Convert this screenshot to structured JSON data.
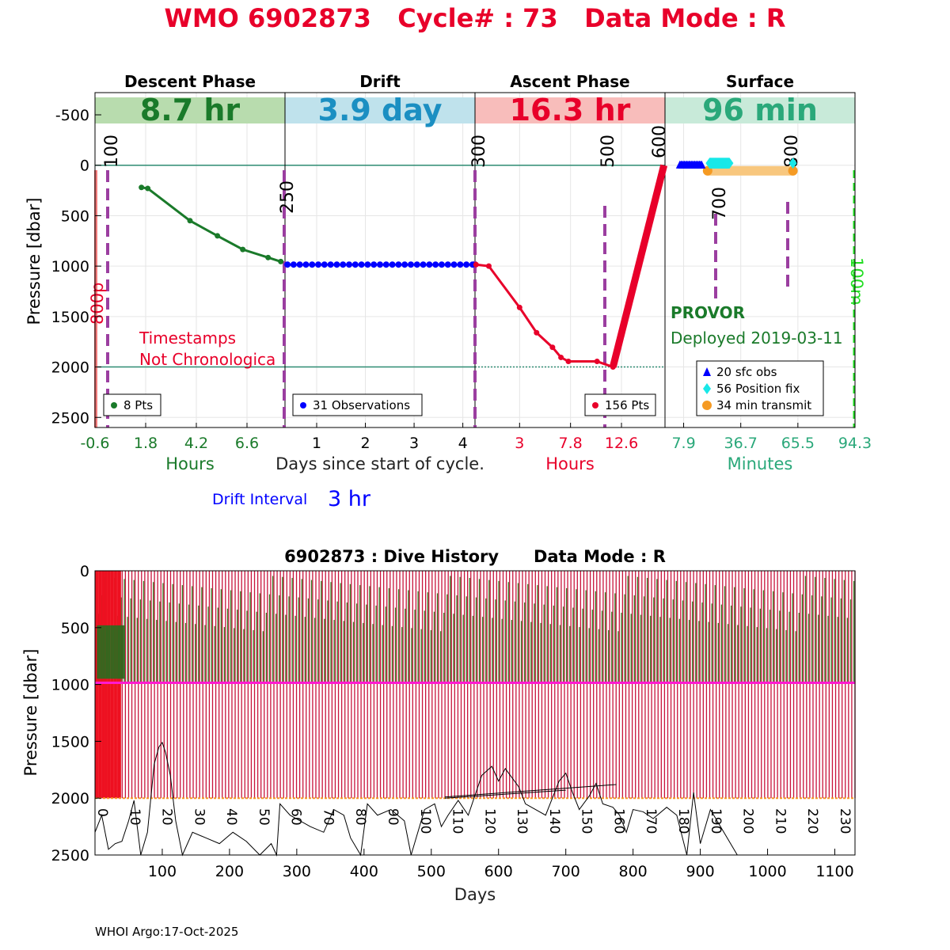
{
  "page_title": "WMO 6902873   Cycle# : 73   Data Mode : R",
  "footer": "WHOI Argo:17-Oct-2025",
  "colors": {
    "title_red": "#e8002a",
    "descent_green": "#1a7a2a",
    "drift_blue": "#0000ff",
    "ascent_red": "#e8002a",
    "surface_teal": "#2aa87a",
    "purple_dash": "#9b3ea0",
    "lime": "#22dd22",
    "orange": "#f59a23",
    "cyan": "#18e8e8"
  },
  "chart_data": [
    {
      "type": "line",
      "name": "cycle-profile",
      "ylabel": "Pressure [dbar]",
      "xlabel_center": "Days since start of cycle.",
      "ylim": [
        2600,
        -720
      ],
      "yticks": [
        -500,
        0,
        500,
        1000,
        1500,
        2000,
        2500
      ],
      "drift_interval_label": "Drift Interval",
      "drift_interval_value": "3 hr",
      "float_type": "PROVOR",
      "deployed": "Deployed 2019-03-11",
      "warning": [
        "Timestamps",
        "Not Chronologica"
      ],
      "marker_labels": {
        "left_red": "800p",
        "right_green": "100m",
        "cycle_marks": [
          "100",
          "250",
          "300",
          "500",
          "600",
          "700",
          "800"
        ]
      },
      "panels": [
        {
          "title": "Descent Phase",
          "duration": "8.7 hr",
          "unit": "Hours",
          "xlim": [
            -0.6,
            8.4
          ],
          "xticks": [
            -0.6,
            1.8,
            4.2,
            6.6
          ],
          "series": [
            {
              "name": "descent",
              "x": [
                1.6,
                1.9,
                3.9,
                5.2,
                6.4,
                7.6,
                8.2
              ],
              "y": [
                220,
                230,
                550,
                700,
                835,
                915,
                955
              ]
            }
          ],
          "legend": "8 Pts"
        },
        {
          "title": "Drift",
          "duration": "3.9 day",
          "unit": "Days",
          "xlim": [
            0.35,
            4.25
          ],
          "xticks": [
            1,
            2,
            3,
            4
          ],
          "series": [
            {
              "name": "drift",
              "x_start": 0.4,
              "x_end": 4.2,
              "count": 31,
              "y": 985
            }
          ],
          "legend": "31 Observations"
        },
        {
          "title": "Ascent Phase",
          "duration": "16.3 hr",
          "unit": "Hours",
          "xlim": [
            -1.2,
            16.7
          ],
          "xticks": [
            3,
            7.8,
            12.6
          ],
          "series": [
            {
              "name": "ascent",
              "x": [
                -1.1,
                0.1,
                3.0,
                4.6,
                6.1,
                6.9,
                7.6,
                10.3,
                11.8,
                16.6
              ],
              "y": [
                985,
                1000,
                1410,
                1660,
                1805,
                1905,
                1945,
                1945,
                2000,
                0
              ]
            }
          ],
          "legend": "156 Pts",
          "reference_level": 2000
        },
        {
          "title": "Surface",
          "duration": "96 min",
          "unit": "Minutes",
          "xlim": [
            -1.5,
            94.3
          ],
          "xticks": [
            7.9,
            36.7,
            65.5,
            94.3
          ],
          "sfc_obs": {
            "count": 20,
            "label": "20 sfc obs",
            "x_start": 6.0,
            "x_end": 17.0,
            "y": 0
          },
          "position_fix": {
            "count": 56,
            "label": "56 Position fix",
            "x_start": 21.0,
            "x_end": 31.0,
            "y": -20
          },
          "transmit": {
            "label": "34 min transmit",
            "x_start": 20.0,
            "x_end": 63.0,
            "y": 55
          }
        }
      ]
    },
    {
      "type": "line",
      "name": "dive-history",
      "title": "6902873 : Dive History      Data Mode : R",
      "xlabel": "Days",
      "ylabel": "Pressure [dbar]",
      "xlim": [
        0,
        1130
      ],
      "ylim": [
        2500,
        0
      ],
      "xticks": [
        100,
        200,
        300,
        400,
        500,
        600,
        700,
        800,
        900,
        1000,
        1100
      ],
      "yticks": [
        0,
        500,
        1000,
        1500,
        2000,
        2500
      ],
      "cycle_count": 236,
      "cycle_interval_days": 4.8,
      "park_pressure": 985,
      "profile_pressure": 2000,
      "cycle_labels": [
        0,
        10,
        20,
        30,
        40,
        50,
        60,
        70,
        80,
        90,
        100,
        110,
        120,
        130,
        140,
        150,
        160,
        170,
        180,
        190,
        200,
        210,
        220,
        230
      ],
      "bathymetry": {
        "x": [
          0,
          10,
          20,
          30,
          40,
          50,
          58,
          68,
          78,
          88,
          95,
          100,
          105,
          112,
          120,
          130,
          145,
          165,
          185,
          205,
          225,
          245,
          262,
          270,
          275,
          290,
          305,
          320,
          340,
          355,
          370,
          380,
          395,
          405,
          420,
          440,
          460,
          470,
          490,
          505,
          515,
          525,
          540,
          555,
          575,
          590,
          600,
          610,
          620,
          630,
          640,
          655,
          670,
          690,
          700,
          710,
          720,
          735,
          745,
          755,
          770,
          780,
          790,
          800,
          815,
          830,
          850,
          865,
          880,
          890,
          900,
          915,
          935,
          955
        ],
        "y": [
          2300,
          2150,
          2450,
          2400,
          2380,
          2200,
          2020,
          2500,
          2300,
          1700,
          1550,
          1510,
          1600,
          1800,
          2200,
          2500,
          2300,
          2350,
          2400,
          2300,
          2380,
          2500,
          2400,
          2500,
          2050,
          2150,
          2200,
          2250,
          2300,
          2100,
          2150,
          2350,
          2500,
          2050,
          2150,
          2100,
          2200,
          2500,
          2100,
          2050,
          2250,
          2150,
          2020,
          2150,
          1800,
          1720,
          1850,
          1740,
          1820,
          1900,
          2050,
          2100,
          2150,
          1850,
          1780,
          1950,
          2100,
          1980,
          1870,
          2050,
          2080,
          2150,
          2300,
          2100,
          2120,
          2180,
          2080,
          2150,
          2500,
          1950,
          2400,
          2100,
          2300,
          2500
        ]
      }
    }
  ]
}
